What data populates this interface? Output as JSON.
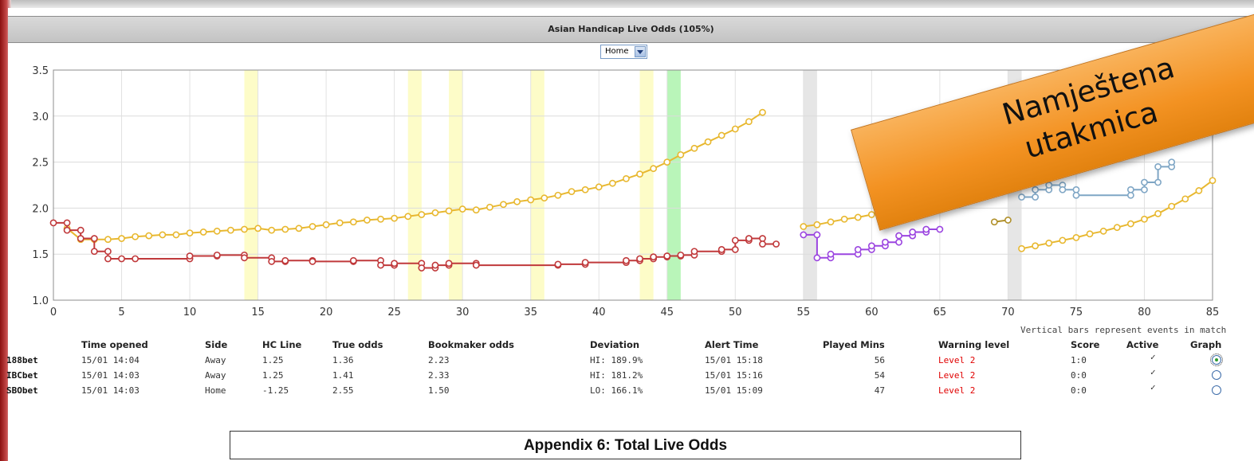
{
  "title": "Asian Handicap Live Odds (105%)",
  "selector": {
    "value": "Home"
  },
  "overlay": {
    "line1": "Namještena",
    "line2": "utakmica"
  },
  "note": "Vertical bars represent events in match",
  "appendix": "Appendix 6: Total Live Odds",
  "colors": {
    "yellow_line": "#e8b830",
    "red_line": "#c0393b",
    "purple_line": "#9b45e0",
    "blue_line": "#7fa6c5",
    "olive_line": "#b0902a",
    "bar_yellow": "#fdfcc8",
    "bar_green": "#b9f5b9",
    "bar_gray": "#e6e6e6"
  },
  "table": {
    "headers": [
      "Time opened",
      "Side",
      "HC Line",
      "True odds",
      "Bookmaker odds",
      "Deviation",
      "Alert Time",
      "Played Mins",
      "Warning level",
      "Score",
      "Active",
      "Graph"
    ],
    "rows": [
      {
        "bookmaker": "188bet",
        "time_opened": "15/01 14:04",
        "side": "Away",
        "hc_line": "1.25",
        "true_odds": "1.36",
        "bookmaker_odds": "2.23",
        "deviation": "HI: 189.9%",
        "alert_time": "15/01 15:18",
        "played_mins": "56",
        "warning_level": "Level 2",
        "score": "1:0",
        "active": "✓",
        "graph_selected": true
      },
      {
        "bookmaker": "IBCbet",
        "time_opened": "15/01 14:03",
        "side": "Away",
        "hc_line": "1.25",
        "true_odds": "1.41",
        "bookmaker_odds": "2.33",
        "deviation": "HI: 181.2%",
        "alert_time": "15/01 15:16",
        "played_mins": "54",
        "warning_level": "Level 2",
        "score": "0:0",
        "active": "✓",
        "graph_selected": false
      },
      {
        "bookmaker": "SBObet",
        "time_opened": "15/01 14:03",
        "side": "Home",
        "hc_line": "-1.25",
        "true_odds": "2.55",
        "bookmaker_odds": "1.50",
        "deviation": "LO: 166.1%",
        "alert_time": "15/01 15:09",
        "played_mins": "47",
        "warning_level": "Level 2",
        "score": "0:0",
        "active": "✓",
        "graph_selected": false
      }
    ]
  },
  "chart_data": {
    "type": "line",
    "xlim": [
      0,
      85
    ],
    "ylim": [
      1.0,
      3.5
    ],
    "xticks": [
      "0",
      "5",
      "10",
      "15",
      "20",
      "25",
      "30",
      "35",
      "40",
      "45",
      "50",
      "55",
      "60",
      "65",
      "70",
      "75",
      "80",
      "85"
    ],
    "yticks": [
      "1.0",
      "1.5",
      "2.0",
      "2.5",
      "3.0",
      "3.5"
    ],
    "grid": true,
    "event_bars": [
      {
        "x": 14.5,
        "kind": "yellow"
      },
      {
        "x": 26.5,
        "kind": "yellow"
      },
      {
        "x": 29.5,
        "kind": "yellow"
      },
      {
        "x": 35.5,
        "kind": "yellow"
      },
      {
        "x": 43.5,
        "kind": "yellow"
      },
      {
        "x": 45.5,
        "kind": "green"
      },
      {
        "x": 55.5,
        "kind": "gray"
      },
      {
        "x": 70.5,
        "kind": "gray"
      }
    ],
    "series": [
      {
        "color": "yellow",
        "step": false,
        "points": [
          [
            1,
            1.78
          ],
          [
            2,
            1.66
          ],
          [
            3,
            1.66
          ],
          [
            4,
            1.66
          ],
          [
            5,
            1.67
          ],
          [
            6,
            1.69
          ],
          [
            7,
            1.7
          ],
          [
            8,
            1.71
          ],
          [
            9,
            1.71
          ],
          [
            10,
            1.73
          ],
          [
            11,
            1.74
          ],
          [
            12,
            1.75
          ],
          [
            13,
            1.76
          ],
          [
            14,
            1.77
          ],
          [
            15,
            1.78
          ],
          [
            16,
            1.76
          ],
          [
            17,
            1.77
          ],
          [
            18,
            1.78
          ],
          [
            19,
            1.8
          ],
          [
            20,
            1.82
          ],
          [
            21,
            1.84
          ],
          [
            22,
            1.85
          ],
          [
            23,
            1.87
          ],
          [
            24,
            1.88
          ],
          [
            25,
            1.89
          ],
          [
            26,
            1.91
          ],
          [
            27,
            1.93
          ],
          [
            28,
            1.95
          ],
          [
            29,
            1.97
          ],
          [
            30,
            1.99
          ],
          [
            31,
            1.98
          ],
          [
            32,
            2.01
          ],
          [
            33,
            2.04
          ],
          [
            34,
            2.07
          ],
          [
            35,
            2.09
          ],
          [
            36,
            2.11
          ],
          [
            37,
            2.14
          ],
          [
            38,
            2.18
          ],
          [
            39,
            2.2
          ],
          [
            40,
            2.23
          ],
          [
            41,
            2.27
          ],
          [
            42,
            2.32
          ],
          [
            43,
            2.37
          ],
          [
            44,
            2.43
          ],
          [
            45,
            2.5
          ],
          [
            46,
            2.58
          ],
          [
            47,
            2.65
          ],
          [
            48,
            2.72
          ],
          [
            49,
            2.79
          ],
          [
            50,
            2.86
          ],
          [
            51,
            2.94
          ],
          [
            52,
            3.04
          ]
        ]
      },
      {
        "color": "red",
        "step": true,
        "points": [
          [
            0,
            1.84
          ],
          [
            1,
            1.84
          ],
          [
            1,
            1.76
          ],
          [
            2,
            1.76
          ],
          [
            2,
            1.67
          ],
          [
            3,
            1.67
          ],
          [
            3,
            1.53
          ],
          [
            4,
            1.53
          ],
          [
            4,
            1.45
          ],
          [
            5,
            1.45
          ],
          [
            6,
            1.45
          ],
          [
            10,
            1.45
          ],
          [
            10,
            1.48
          ],
          [
            12,
            1.48
          ],
          [
            12,
            1.49
          ],
          [
            14,
            1.49
          ],
          [
            14,
            1.46
          ],
          [
            16,
            1.46
          ],
          [
            16,
            1.42
          ],
          [
            17,
            1.42
          ],
          [
            17,
            1.43
          ],
          [
            19,
            1.43
          ],
          [
            19,
            1.42
          ],
          [
            22,
            1.42
          ],
          [
            22,
            1.43
          ],
          [
            24,
            1.43
          ],
          [
            24,
            1.38
          ],
          [
            25,
            1.38
          ],
          [
            25,
            1.4
          ],
          [
            27,
            1.4
          ],
          [
            27,
            1.35
          ],
          [
            28,
            1.35
          ],
          [
            28,
            1.38
          ],
          [
            29,
            1.38
          ],
          [
            29,
            1.4
          ],
          [
            31,
            1.4
          ],
          [
            31,
            1.38
          ],
          [
            37,
            1.38
          ],
          [
            37,
            1.39
          ],
          [
            39,
            1.39
          ],
          [
            39,
            1.41
          ],
          [
            42,
            1.41
          ],
          [
            42,
            1.43
          ],
          [
            43,
            1.43
          ],
          [
            43,
            1.45
          ],
          [
            44,
            1.45
          ],
          [
            44,
            1.47
          ],
          [
            45,
            1.47
          ],
          [
            45,
            1.48
          ],
          [
            46,
            1.48
          ],
          [
            46,
            1.49
          ],
          [
            47,
            1.49
          ],
          [
            47,
            1.53
          ],
          [
            49,
            1.53
          ],
          [
            49,
            1.55
          ],
          [
            50,
            1.55
          ],
          [
            50,
            1.65
          ],
          [
            51,
            1.65
          ],
          [
            51,
            1.67
          ],
          [
            52,
            1.67
          ],
          [
            52,
            1.61
          ],
          [
            53,
            1.61
          ]
        ]
      },
      {
        "color": "yellow",
        "step": false,
        "points": [
          [
            55,
            1.8
          ],
          [
            56,
            1.82
          ],
          [
            57,
            1.85
          ],
          [
            58,
            1.88
          ],
          [
            59,
            1.9
          ],
          [
            60,
            1.93
          ]
        ]
      },
      {
        "color": "purple",
        "step": true,
        "points": [
          [
            55,
            1.71
          ],
          [
            56,
            1.71
          ],
          [
            56,
            1.46
          ],
          [
            57,
            1.46
          ],
          [
            57,
            1.5
          ],
          [
            59,
            1.5
          ],
          [
            59,
            1.55
          ],
          [
            60,
            1.55
          ],
          [
            60,
            1.59
          ],
          [
            61,
            1.59
          ],
          [
            61,
            1.63
          ],
          [
            62,
            1.63
          ],
          [
            62,
            1.7
          ],
          [
            63,
            1.7
          ],
          [
            63,
            1.74
          ],
          [
            64,
            1.74
          ],
          [
            64,
            1.77
          ],
          [
            65,
            1.77
          ]
        ]
      },
      {
        "color": "olive",
        "step": false,
        "points": [
          [
            69,
            1.85
          ],
          [
            70,
            1.87
          ]
        ]
      },
      {
        "color": "blue",
        "step": true,
        "points": [
          [
            71,
            2.12
          ],
          [
            72,
            2.12
          ],
          [
            72,
            2.2
          ],
          [
            73,
            2.2
          ],
          [
            73,
            2.25
          ],
          [
            74,
            2.25
          ],
          [
            74,
            2.2
          ],
          [
            75,
            2.2
          ],
          [
            75,
            2.14
          ],
          [
            79,
            2.14
          ],
          [
            79,
            2.2
          ],
          [
            80,
            2.2
          ],
          [
            80,
            2.28
          ],
          [
            81,
            2.28
          ],
          [
            81,
            2.45
          ],
          [
            82,
            2.45
          ],
          [
            82,
            2.5
          ]
        ]
      },
      {
        "color": "yellow",
        "step": false,
        "points": [
          [
            71,
            1.56
          ],
          [
            72,
            1.59
          ],
          [
            73,
            1.62
          ],
          [
            74,
            1.65
          ],
          [
            75,
            1.68
          ],
          [
            76,
            1.72
          ],
          [
            77,
            1.75
          ],
          [
            78,
            1.79
          ],
          [
            79,
            1.83
          ],
          [
            80,
            1.88
          ],
          [
            81,
            1.94
          ],
          [
            82,
            2.02
          ],
          [
            83,
            2.1
          ],
          [
            84,
            2.19
          ],
          [
            85,
            2.3
          ]
        ]
      }
    ]
  }
}
